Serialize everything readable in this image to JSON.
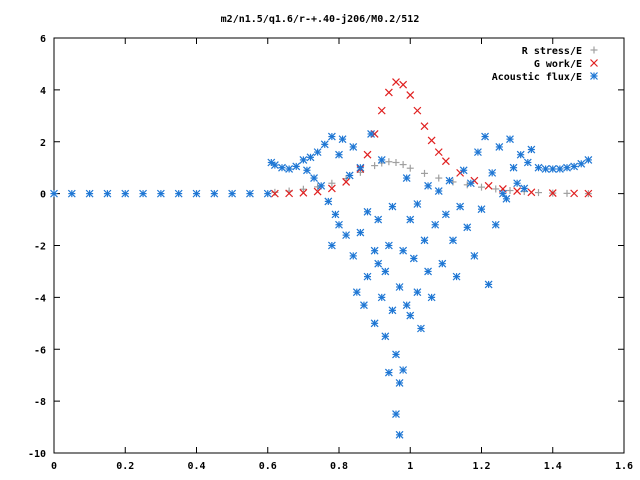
{
  "chart_data": {
    "type": "scatter",
    "title": "m2/n1.5/q1.6/r-+.40-j206/M0.2/512",
    "xlabel": "",
    "ylabel": "",
    "xlim": [
      0,
      1.6
    ],
    "ylim": [
      -10,
      6
    ],
    "x_ticks": [
      "0",
      "0.2",
      "0.4",
      "0.6",
      "0.8",
      "1",
      "1.2",
      "1.4",
      "1.6"
    ],
    "y_ticks": [
      "6",
      "4",
      "2",
      "0",
      "-2",
      "-4",
      "-6",
      "-8",
      "-10"
    ],
    "grid": false,
    "legend_position": "top-right",
    "series": [
      {
        "name": "R stress/E",
        "marker": "+",
        "color": "#a0a0a0",
        "points": [
          [
            0.62,
            0.05
          ],
          [
            0.66,
            0.1
          ],
          [
            0.7,
            0.17
          ],
          [
            0.74,
            0.26
          ],
          [
            0.78,
            0.4
          ],
          [
            0.82,
            0.58
          ],
          [
            0.86,
            0.82
          ],
          [
            0.9,
            1.08
          ],
          [
            0.92,
            1.18
          ],
          [
            0.94,
            1.23
          ],
          [
            0.96,
            1.2
          ],
          [
            0.98,
            1.12
          ],
          [
            1.0,
            0.98
          ],
          [
            1.04,
            0.78
          ],
          [
            1.08,
            0.6
          ],
          [
            1.12,
            0.45
          ],
          [
            1.16,
            0.34
          ],
          [
            1.2,
            0.25
          ],
          [
            1.24,
            0.18
          ],
          [
            1.28,
            0.12
          ],
          [
            1.32,
            0.08
          ],
          [
            1.36,
            0.04
          ],
          [
            1.4,
            0.02
          ],
          [
            1.44,
            0.01
          ],
          [
            1.5,
            0.0
          ]
        ]
      },
      {
        "name": "G work/E",
        "marker": "x",
        "color": "#e02020",
        "points": [
          [
            0.62,
            0.0
          ],
          [
            0.66,
            0.01
          ],
          [
            0.7,
            0.03
          ],
          [
            0.74,
            0.08
          ],
          [
            0.78,
            0.2
          ],
          [
            0.82,
            0.45
          ],
          [
            0.86,
            0.95
          ],
          [
            0.88,
            1.5
          ],
          [
            0.9,
            2.3
          ],
          [
            0.92,
            3.2
          ],
          [
            0.94,
            3.9
          ],
          [
            0.96,
            4.3
          ],
          [
            0.98,
            4.2
          ],
          [
            1.0,
            3.8
          ],
          [
            1.02,
            3.2
          ],
          [
            1.04,
            2.6
          ],
          [
            1.06,
            2.05
          ],
          [
            1.08,
            1.6
          ],
          [
            1.1,
            1.25
          ],
          [
            1.14,
            0.8
          ],
          [
            1.18,
            0.5
          ],
          [
            1.22,
            0.3
          ],
          [
            1.26,
            0.18
          ],
          [
            1.3,
            0.1
          ],
          [
            1.34,
            0.05
          ],
          [
            1.4,
            0.02
          ],
          [
            1.46,
            0.01
          ],
          [
            1.5,
            0.0
          ]
        ]
      },
      {
        "name": "Acoustic flux/E",
        "marker": "*",
        "color": "#1f77d4",
        "points": [
          [
            0.0,
            0.0
          ],
          [
            0.05,
            0.0
          ],
          [
            0.1,
            0.0
          ],
          [
            0.15,
            0.0
          ],
          [
            0.2,
            0.0
          ],
          [
            0.25,
            0.0
          ],
          [
            0.3,
            0.0
          ],
          [
            0.35,
            0.0
          ],
          [
            0.4,
            0.0
          ],
          [
            0.45,
            0.0
          ],
          [
            0.5,
            0.0
          ],
          [
            0.55,
            0.0
          ],
          [
            0.6,
            0.0
          ],
          [
            0.61,
            1.2
          ],
          [
            0.62,
            1.1
          ],
          [
            0.64,
            1.0
          ],
          [
            0.66,
            0.95
          ],
          [
            0.68,
            1.05
          ],
          [
            0.7,
            1.3
          ],
          [
            0.71,
            0.9
          ],
          [
            0.72,
            1.4
          ],
          [
            0.73,
            0.6
          ],
          [
            0.74,
            1.6
          ],
          [
            0.75,
            0.3
          ],
          [
            0.76,
            1.9
          ],
          [
            0.77,
            -0.3
          ],
          [
            0.78,
            2.2
          ],
          [
            0.78,
            -2.0
          ],
          [
            0.79,
            -0.8
          ],
          [
            0.8,
            1.5
          ],
          [
            0.8,
            -1.2
          ],
          [
            0.81,
            2.1
          ],
          [
            0.82,
            -1.6
          ],
          [
            0.83,
            0.7
          ],
          [
            0.84,
            1.8
          ],
          [
            0.84,
            -2.4
          ],
          [
            0.85,
            -3.8
          ],
          [
            0.86,
            -1.5
          ],
          [
            0.86,
            1.0
          ],
          [
            0.87,
            -4.3
          ],
          [
            0.88,
            -0.7
          ],
          [
            0.88,
            -3.2
          ],
          [
            0.89,
            2.3
          ],
          [
            0.9,
            -2.2
          ],
          [
            0.9,
            -5.0
          ],
          [
            0.91,
            -1.0
          ],
          [
            0.91,
            -2.7
          ],
          [
            0.92,
            1.3
          ],
          [
            0.92,
            -4.0
          ],
          [
            0.93,
            -5.5
          ],
          [
            0.93,
            -3.0
          ],
          [
            0.94,
            -2.0
          ],
          [
            0.94,
            -6.9
          ],
          [
            0.95,
            -4.5
          ],
          [
            0.95,
            -0.5
          ],
          [
            0.96,
            -6.2
          ],
          [
            0.96,
            -8.5
          ],
          [
            0.97,
            -9.3
          ],
          [
            0.97,
            -7.3
          ],
          [
            0.97,
            -3.6
          ],
          [
            0.98,
            -2.2
          ],
          [
            0.98,
            -6.8
          ],
          [
            0.99,
            -4.3
          ],
          [
            0.99,
            0.6
          ],
          [
            1.0,
            -1.0
          ],
          [
            1.0,
            -4.7
          ],
          [
            1.01,
            -2.5
          ],
          [
            1.02,
            -0.4
          ],
          [
            1.02,
            -3.8
          ],
          [
            1.03,
            -5.2
          ],
          [
            1.04,
            -1.8
          ],
          [
            1.05,
            -3.0
          ],
          [
            1.05,
            0.3
          ],
          [
            1.06,
            -4.0
          ],
          [
            1.07,
            -1.2
          ],
          [
            1.08,
            0.1
          ],
          [
            1.09,
            -2.7
          ],
          [
            1.1,
            -0.8
          ],
          [
            1.11,
            0.5
          ],
          [
            1.12,
            -1.8
          ],
          [
            1.13,
            -3.2
          ],
          [
            1.14,
            -0.5
          ],
          [
            1.15,
            0.9
          ],
          [
            1.16,
            -1.3
          ],
          [
            1.17,
            0.4
          ],
          [
            1.18,
            -2.4
          ],
          [
            1.19,
            1.6
          ],
          [
            1.2,
            -0.6
          ],
          [
            1.21,
            2.2
          ],
          [
            1.22,
            -3.5
          ],
          [
            1.23,
            0.8
          ],
          [
            1.24,
            -1.2
          ],
          [
            1.25,
            1.8
          ],
          [
            1.26,
            0.0
          ],
          [
            1.27,
            -0.2
          ],
          [
            1.28,
            2.1
          ],
          [
            1.29,
            1.0
          ],
          [
            1.3,
            0.4
          ],
          [
            1.31,
            1.5
          ],
          [
            1.32,
            0.2
          ],
          [
            1.33,
            1.2
          ],
          [
            1.34,
            1.7
          ],
          [
            1.36,
            1.0
          ],
          [
            1.38,
            0.95
          ],
          [
            1.4,
            0.95
          ],
          [
            1.42,
            0.95
          ],
          [
            1.44,
            1.0
          ],
          [
            1.46,
            1.05
          ],
          [
            1.48,
            1.15
          ],
          [
            1.5,
            1.3
          ]
        ]
      }
    ]
  }
}
